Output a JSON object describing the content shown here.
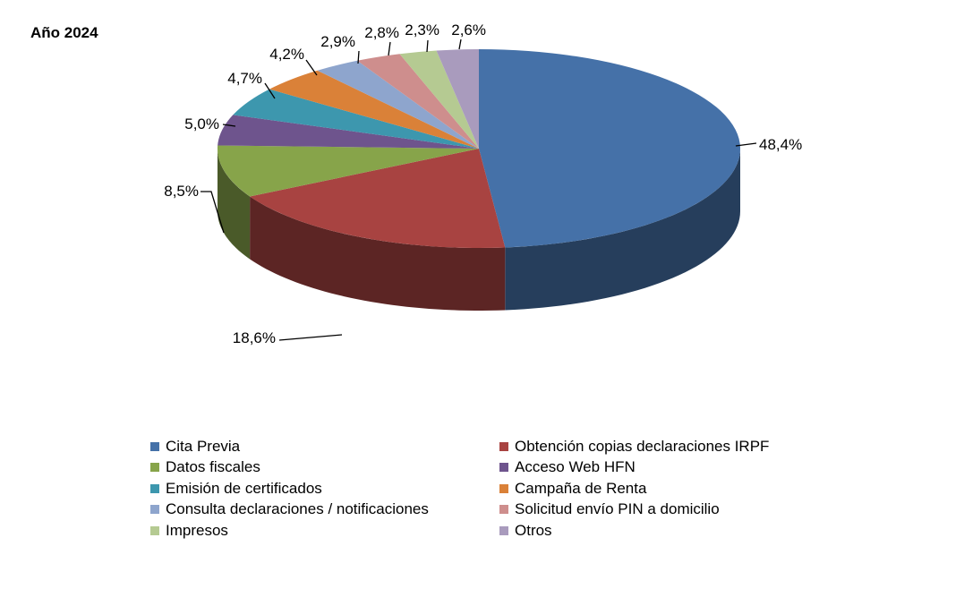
{
  "chart_data": {
    "type": "pie",
    "title": "Año 2024",
    "slices": [
      {
        "name": "Cita Previa",
        "value": 48.4,
        "label": "48,4%",
        "color": "#4571A8"
      },
      {
        "name": "Obtención copias declaraciones IRPF",
        "value": 18.6,
        "label": "18,6%",
        "color": "#A84341"
      },
      {
        "name": "Datos fiscales",
        "value": 8.5,
        "label": "8,5%",
        "color": "#87A44A"
      },
      {
        "name": "Acceso Web HFN",
        "value": 5.0,
        "label": "5,0%",
        "color": "#6E548D"
      },
      {
        "name": "Emisión de certificados",
        "value": 4.7,
        "label": "4,7%",
        "color": "#3D97AE"
      },
      {
        "name": "Campaña de Renta",
        "value": 4.2,
        "label": "4,2%",
        "color": "#DA8138"
      },
      {
        "name": "Consulta declaraciones / notificaciones",
        "value": 2.9,
        "label": "2,9%",
        "color": "#8EA5CD"
      },
      {
        "name": "Solicitud envío PIN a domicilio",
        "value": 2.8,
        "label": "2,8%",
        "color": "#CE8E8D"
      },
      {
        "name": "Impresos",
        "value": 2.3,
        "label": "2,3%",
        "color": "#B5CA92"
      },
      {
        "name": "Otros",
        "value": 2.6,
        "label": "2,6%",
        "color": "#A99BBD"
      }
    ],
    "legend_position": "bottom"
  }
}
